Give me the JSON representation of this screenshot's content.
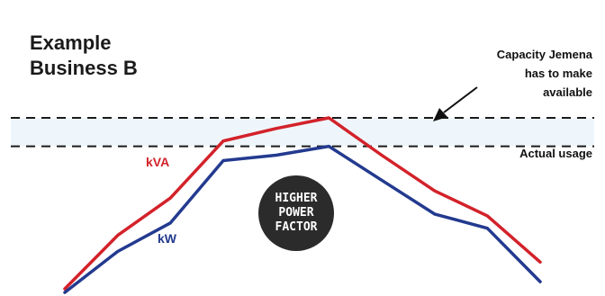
{
  "title_lines": [
    "Example",
    "Business B"
  ],
  "annotations": {
    "capacity_lines": [
      "Capacity Jemena",
      "has to make",
      "available"
    ],
    "actual_usage": "Actual usage"
  },
  "badge_lines": [
    "HIGHER",
    "POWER",
    "FACTOR"
  ],
  "colors": {
    "kva": "#d3222a",
    "kw": "#233a8f",
    "band": "#eef6fc",
    "dashed": "#1a1a1a",
    "badge": "#2b2b2b"
  },
  "chart_data": {
    "type": "line",
    "title": "Example Business B",
    "xlabel": "",
    "ylabel": "",
    "grid": false,
    "x": [
      0,
      1,
      2,
      3,
      4,
      5,
      6,
      7,
      8,
      9
    ],
    "xlim": [
      0,
      9
    ],
    "ylim": [
      0,
      100
    ],
    "series": [
      {
        "name": "kVA",
        "values": [
          2,
          32,
          53,
          85,
          92,
          98,
          77,
          57,
          43,
          17
        ]
      },
      {
        "name": "kW",
        "values": [
          0,
          23,
          39,
          74,
          77,
          82,
          63,
          44,
          36,
          6
        ]
      }
    ],
    "reference_lines": [
      {
        "label": "Capacity Jemena has to make available",
        "value": 98
      },
      {
        "label": "Actual usage",
        "value": 82
      }
    ]
  }
}
